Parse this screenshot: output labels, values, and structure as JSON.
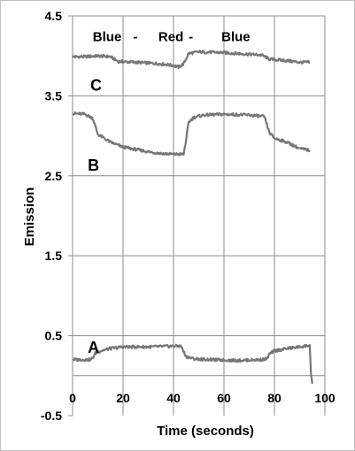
{
  "chart_data": {
    "type": "line",
    "title": "",
    "xlabel": "Time (seconds)",
    "ylabel": "Emission",
    "xlim": [
      0,
      100
    ],
    "ylim": [
      -0.5,
      4.5
    ],
    "x_ticks": [
      0,
      20,
      40,
      60,
      80,
      100
    ],
    "y_ticks": [
      -0.5,
      0.5,
      1.5,
      2.5,
      3.5,
      4.5
    ],
    "x_tick_labels": [
      "0",
      "20",
      "40",
      "60",
      "80",
      "100"
    ],
    "y_tick_labels": [
      "-0.5",
      "0.5",
      "1.5",
      "2.5",
      "3.5",
      "4.5"
    ],
    "grid": {
      "vertical": true,
      "horizontal": true
    },
    "annotations": [
      {
        "text": "Blue",
        "x": 8,
        "y": 4.25
      },
      {
        "text": "-",
        "x": 24,
        "y": 4.25
      },
      {
        "text": "Red",
        "x": 34,
        "y": 4.25
      },
      {
        "text": "-",
        "x": 46,
        "y": 4.25
      },
      {
        "text": "Blue",
        "x": 59,
        "y": 4.25
      },
      {
        "text": "C",
        "x": 7,
        "y": 3.63
      },
      {
        "text": "B",
        "x": 6,
        "y": 2.63
      },
      {
        "text": "A",
        "x": 6,
        "y": 0.35
      }
    ],
    "series": [
      {
        "label": "C",
        "color": "#777777",
        "points": [
          [
            0,
            3.99
          ],
          [
            5,
            3.99
          ],
          [
            10,
            4.0
          ],
          [
            15,
            3.99
          ],
          [
            18,
            3.93
          ],
          [
            25,
            3.92
          ],
          [
            35,
            3.9
          ],
          [
            40,
            3.88
          ],
          [
            42,
            3.86
          ],
          [
            44,
            3.9
          ],
          [
            46,
            4.03
          ],
          [
            50,
            4.05
          ],
          [
            60,
            4.04
          ],
          [
            70,
            4.02
          ],
          [
            75,
            4.01
          ],
          [
            78,
            3.96
          ],
          [
            85,
            3.94
          ],
          [
            90,
            3.92
          ],
          [
            94,
            3.92
          ]
        ]
      },
      {
        "label": "B",
        "color": "#777777",
        "points": [
          [
            0,
            3.28
          ],
          [
            5,
            3.27
          ],
          [
            8,
            3.22
          ],
          [
            9,
            3.12
          ],
          [
            10,
            3.02
          ],
          [
            12,
            2.98
          ],
          [
            15,
            2.92
          ],
          [
            20,
            2.86
          ],
          [
            25,
            2.83
          ],
          [
            30,
            2.8
          ],
          [
            35,
            2.78
          ],
          [
            40,
            2.77
          ],
          [
            44,
            2.77
          ],
          [
            45,
            2.95
          ],
          [
            46,
            3.17
          ],
          [
            48,
            3.23
          ],
          [
            52,
            3.26
          ],
          [
            60,
            3.27
          ],
          [
            70,
            3.26
          ],
          [
            76,
            3.24
          ],
          [
            77,
            3.14
          ],
          [
            78,
            3.04
          ],
          [
            80,
            2.97
          ],
          [
            85,
            2.92
          ],
          [
            90,
            2.84
          ],
          [
            94,
            2.82
          ]
        ]
      },
      {
        "label": "A",
        "color": "#777777",
        "points": [
          [
            0,
            0.2
          ],
          [
            7,
            0.2
          ],
          [
            8,
            0.22
          ],
          [
            9,
            0.28
          ],
          [
            11,
            0.31
          ],
          [
            15,
            0.34
          ],
          [
            20,
            0.36
          ],
          [
            30,
            0.36
          ],
          [
            40,
            0.37
          ],
          [
            43,
            0.37
          ],
          [
            44,
            0.3
          ],
          [
            45,
            0.24
          ],
          [
            48,
            0.21
          ],
          [
            55,
            0.2
          ],
          [
            65,
            0.19
          ],
          [
            75,
            0.2
          ],
          [
            77,
            0.21
          ],
          [
            78,
            0.27
          ],
          [
            80,
            0.31
          ],
          [
            85,
            0.34
          ],
          [
            90,
            0.36
          ],
          [
            94,
            0.38
          ],
          [
            94.5,
            0.0
          ],
          [
            95,
            -0.1
          ]
        ]
      }
    ]
  }
}
